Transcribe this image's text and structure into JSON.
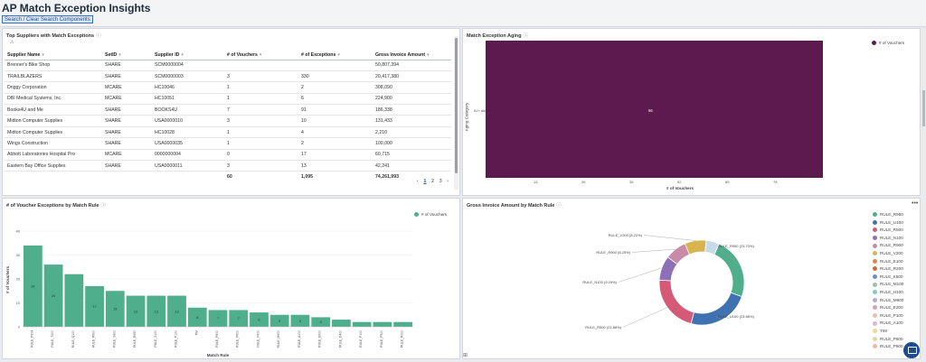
{
  "header": {
    "title": "AP Match Exception Insights",
    "link": "Search / Clear Search Components"
  },
  "suppliers_panel": {
    "title": "Top Suppliers with Match Exceptions",
    "info_icon": "info-icon",
    "columns": [
      "Supplier Name",
      "SetID",
      "Supplier ID",
      "# of Vouchers",
      "# of Exceptions",
      "Gross Invoice Amount"
    ],
    "rows": [
      [
        "Brenner's Bike Shop",
        "SHARE",
        "SCM0000004",
        "",
        "",
        "50,807,394"
      ],
      [
        "TRAILBLAZERS",
        "SHARE",
        "SCM0000003",
        "3",
        "330",
        "20,417,380"
      ],
      [
        "Driggy Corporation",
        "MCARE",
        "HC10046",
        "1",
        "2",
        "308,090"
      ],
      [
        "DBI Medical Systems, Inc.",
        "MCARE",
        "HC10051",
        "1",
        "6",
        "224,900"
      ],
      [
        "Books4U and Me",
        "SHARE",
        "BOOKS4U",
        "7",
        "91",
        "186,338"
      ],
      [
        "Midton Computer Supplies",
        "SHARE",
        "USA0000010",
        "3",
        "10",
        "131,433"
      ],
      [
        "Midton Computer Supplies",
        "SHARE",
        "HC10028",
        "1",
        "4",
        "2,210"
      ],
      [
        "Wings Construction",
        "SHARE",
        "USA0000035",
        "1",
        "2",
        "100,000"
      ],
      [
        "Abbott Laboratories Hospital Pro",
        "MCARE",
        "0000000004",
        "0",
        "17",
        "60,715"
      ],
      [
        "Eastern Bay Office Supplies",
        "SHARE",
        "USA0000011",
        "3",
        "13",
        "42,241"
      ]
    ],
    "totals": [
      "",
      "",
      "",
      "60",
      "1,095",
      "74,261,993"
    ],
    "pager": {
      "prev": "‹",
      "pages": [
        "1",
        "2",
        "3"
      ],
      "current": "1",
      "next": "›"
    }
  },
  "aging_panel": {
    "title": "Match Exception Aging",
    "legend": "# of Vouchers",
    "ylabel": "Aging Category",
    "xlabel": "# of Vouchers",
    "category": "91+ days",
    "value_label": "66",
    "xticks": [
      "13",
      "26",
      "39",
      "52",
      "65",
      "78"
    ],
    "color": "#5c1a4e"
  },
  "rule_panel": {
    "title": "# of Voucher Exceptions by Match Rule",
    "legend": "# of Vouchers",
    "ylabel": "# of Vouchers",
    "xlabel": "Match Rule",
    "color": "#4fae8c"
  },
  "chart_data": {
    "type": "bar",
    "title": "# of Voucher Exceptions by Match Rule",
    "xlabel": "Match Rule",
    "ylabel": "# of Vouchers",
    "ylim": [
      0,
      40
    ],
    "yticks": [
      0,
      10,
      20,
      30,
      40
    ],
    "categories": [
      "RULE_P904",
      "RULE_T200",
      "RULE_Q100",
      "RULE_R900",
      "RULE_S900",
      "RULE_R950",
      "RULE_Z100",
      "RULE_P100",
      "TIM",
      "RULE_P800",
      "RULE_P600",
      "RULE_F600",
      "RULE_M900",
      "RULE_A100",
      "RULE_E600",
      "RULE_D400",
      "RULE_P100",
      "RULE_P500",
      "RULE_R000"
    ],
    "series": [
      {
        "name": "# of Vouchers",
        "values": [
          34,
          26,
          22,
          17,
          15,
          13,
          13,
          13,
          8,
          7,
          7,
          6,
          5,
          5,
          4,
          3,
          2,
          2,
          2
        ]
      }
    ],
    "value_labels": [
      "34",
      "26",
      "",
      "17",
      "15",
      "13",
      "13",
      "13",
      "8",
      "7",
      "7",
      "6",
      "5",
      "5",
      "4",
      "",
      "",
      "",
      ""
    ]
  },
  "donut_panel": {
    "title": "Gross Invoice Amount by Match Rule",
    "slices": [
      {
        "label": "RULE_R950 (23.70%)",
        "value": 23.7,
        "color": "#4fae8c"
      },
      {
        "label": "RULE_U100 (23.68%)",
        "value": 23.68,
        "color": "#3f72b0"
      },
      {
        "label": "RULE_R500 (21.88%)",
        "value": 21.88,
        "color": "#d45a78"
      },
      {
        "label": "RULE_N100 (9.29%)",
        "value": 9.29,
        "color": "#8e70b8"
      },
      {
        "label": "RULE_R900 (8.25%)",
        "value": 8.25,
        "color": "#c98aa8"
      },
      {
        "label": "RULE_V200 (8.22%)",
        "value": 8.22,
        "color": "#d8b450"
      },
      {
        "label": "",
        "value": 4.98,
        "color": "#c7dbe9"
      }
    ],
    "legend": [
      {
        "label": "RULE_R950",
        "color": "#4fae8c"
      },
      {
        "label": "RULE_U100",
        "color": "#3f72b0"
      },
      {
        "label": "RULE_R500",
        "color": "#d45a78"
      },
      {
        "label": "RULE_N100",
        "color": "#8e70b8"
      },
      {
        "label": "RULE_R900",
        "color": "#c98aa8"
      },
      {
        "label": "RULE_V200",
        "color": "#d8b450"
      },
      {
        "label": "RULE_E100",
        "color": "#e0884a"
      },
      {
        "label": "RULE_R200",
        "color": "#d06a3a"
      },
      {
        "label": "RULE_K500",
        "color": "#6a8fc8"
      },
      {
        "label": "RULE_M100",
        "color": "#9cc3a8"
      },
      {
        "label": "RULE_H100",
        "color": "#86c9c0"
      },
      {
        "label": "RULE_M900",
        "color": "#b9a6d6"
      },
      {
        "label": "RULE_E200",
        "color": "#d9a0b8"
      },
      {
        "label": "RULE_P100",
        "color": "#e8c0a8"
      },
      {
        "label": "RULE_A100",
        "color": "#d2b8d8"
      },
      {
        "label": "TIM",
        "color": "#f0d890"
      },
      {
        "label": "RULE_P600",
        "color": "#e7d4a0"
      },
      {
        "label": "RULE_P800",
        "color": "#f2b8a0"
      }
    ]
  }
}
